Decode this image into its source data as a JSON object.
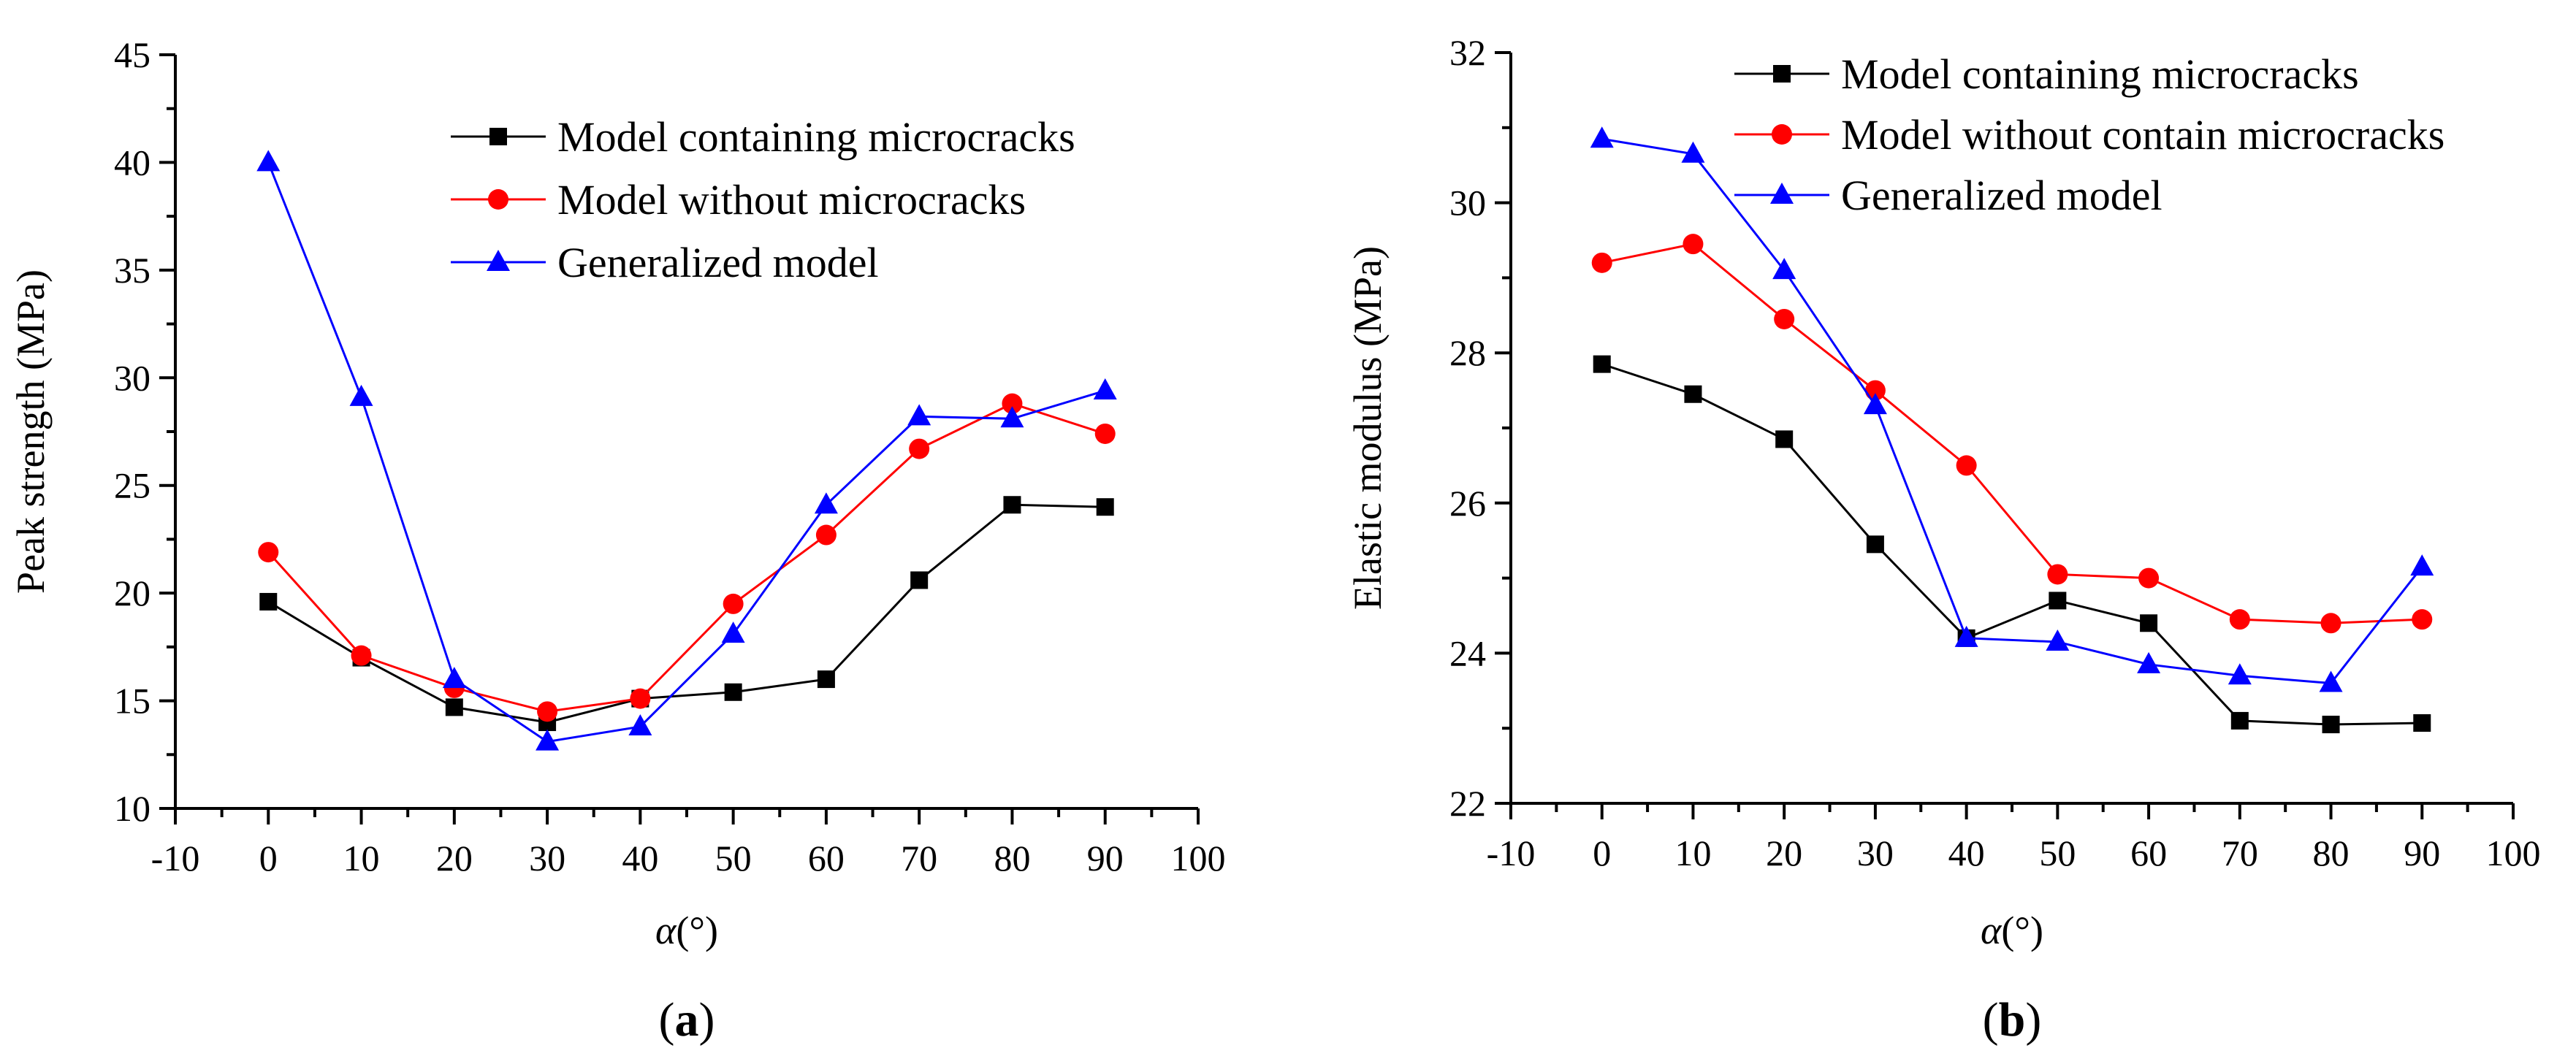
{
  "chart_data": [
    {
      "type": "line",
      "panel_label": "(a)",
      "panel_letter": "a",
      "ylabel": "Peak strength (MPa)",
      "xlabel_symbol": "α",
      "xlabel_unit": "(°)",
      "xlim": [
        -10,
        100
      ],
      "ylim": [
        10,
        45
      ],
      "xticks": [
        -10,
        0,
        10,
        20,
        30,
        40,
        50,
        60,
        70,
        80,
        90,
        100
      ],
      "yticks": [
        10,
        15,
        20,
        25,
        30,
        35,
        40,
        45
      ],
      "x": [
        0,
        10,
        20,
        30,
        40,
        50,
        60,
        70,
        80,
        90
      ],
      "legend_position": "top-right",
      "series": [
        {
          "name": "Model containing  microcracks",
          "color": "#000000",
          "marker": "square",
          "values": [
            19.6,
            17.0,
            14.7,
            14.0,
            15.1,
            15.4,
            16.0,
            20.6,
            24.1,
            24.0
          ]
        },
        {
          "name": "Model without  microcracks",
          "color": "#ff0000",
          "marker": "circle",
          "values": [
            21.9,
            17.1,
            15.6,
            14.5,
            15.1,
            19.5,
            22.7,
            26.7,
            28.8,
            27.4
          ]
        },
        {
          "name": "Generalized model",
          "color": "#0000ff",
          "marker": "triangle",
          "values": [
            40.0,
            29.1,
            16.0,
            13.1,
            13.8,
            18.1,
            24.1,
            28.2,
            28.1,
            29.4
          ]
        }
      ]
    },
    {
      "type": "line",
      "panel_label": "(b)",
      "panel_letter": "b",
      "ylabel": "Elastic modulus (MPa)",
      "xlabel_symbol": "α",
      "xlabel_unit": "(°)",
      "xlim": [
        -10,
        100
      ],
      "ylim": [
        22,
        32
      ],
      "xticks": [
        -10,
        0,
        10,
        20,
        30,
        40,
        50,
        60,
        70,
        80,
        90,
        100
      ],
      "yticks": [
        22,
        24,
        26,
        28,
        30,
        32
      ],
      "x": [
        0,
        10,
        20,
        30,
        40,
        50,
        60,
        70,
        80,
        90
      ],
      "legend_position": "top-right",
      "series": [
        {
          "name": "Model containing microcracks",
          "color": "#000000",
          "marker": "square",
          "values": [
            27.85,
            27.45,
            26.85,
            25.45,
            24.2,
            24.7,
            24.4,
            23.1,
            23.05,
            23.07
          ]
        },
        {
          "name": "Model without contain microcracks",
          "color": "#ff0000",
          "marker": "circle",
          "values": [
            29.2,
            29.45,
            28.45,
            27.5,
            26.5,
            25.05,
            25.0,
            24.45,
            24.4,
            24.45
          ]
        },
        {
          "name": "Generalized model",
          "color": "#0000ff",
          "marker": "triangle",
          "values": [
            30.85,
            30.65,
            29.1,
            27.3,
            24.2,
            24.15,
            23.85,
            23.7,
            23.6,
            25.15
          ]
        }
      ]
    }
  ]
}
